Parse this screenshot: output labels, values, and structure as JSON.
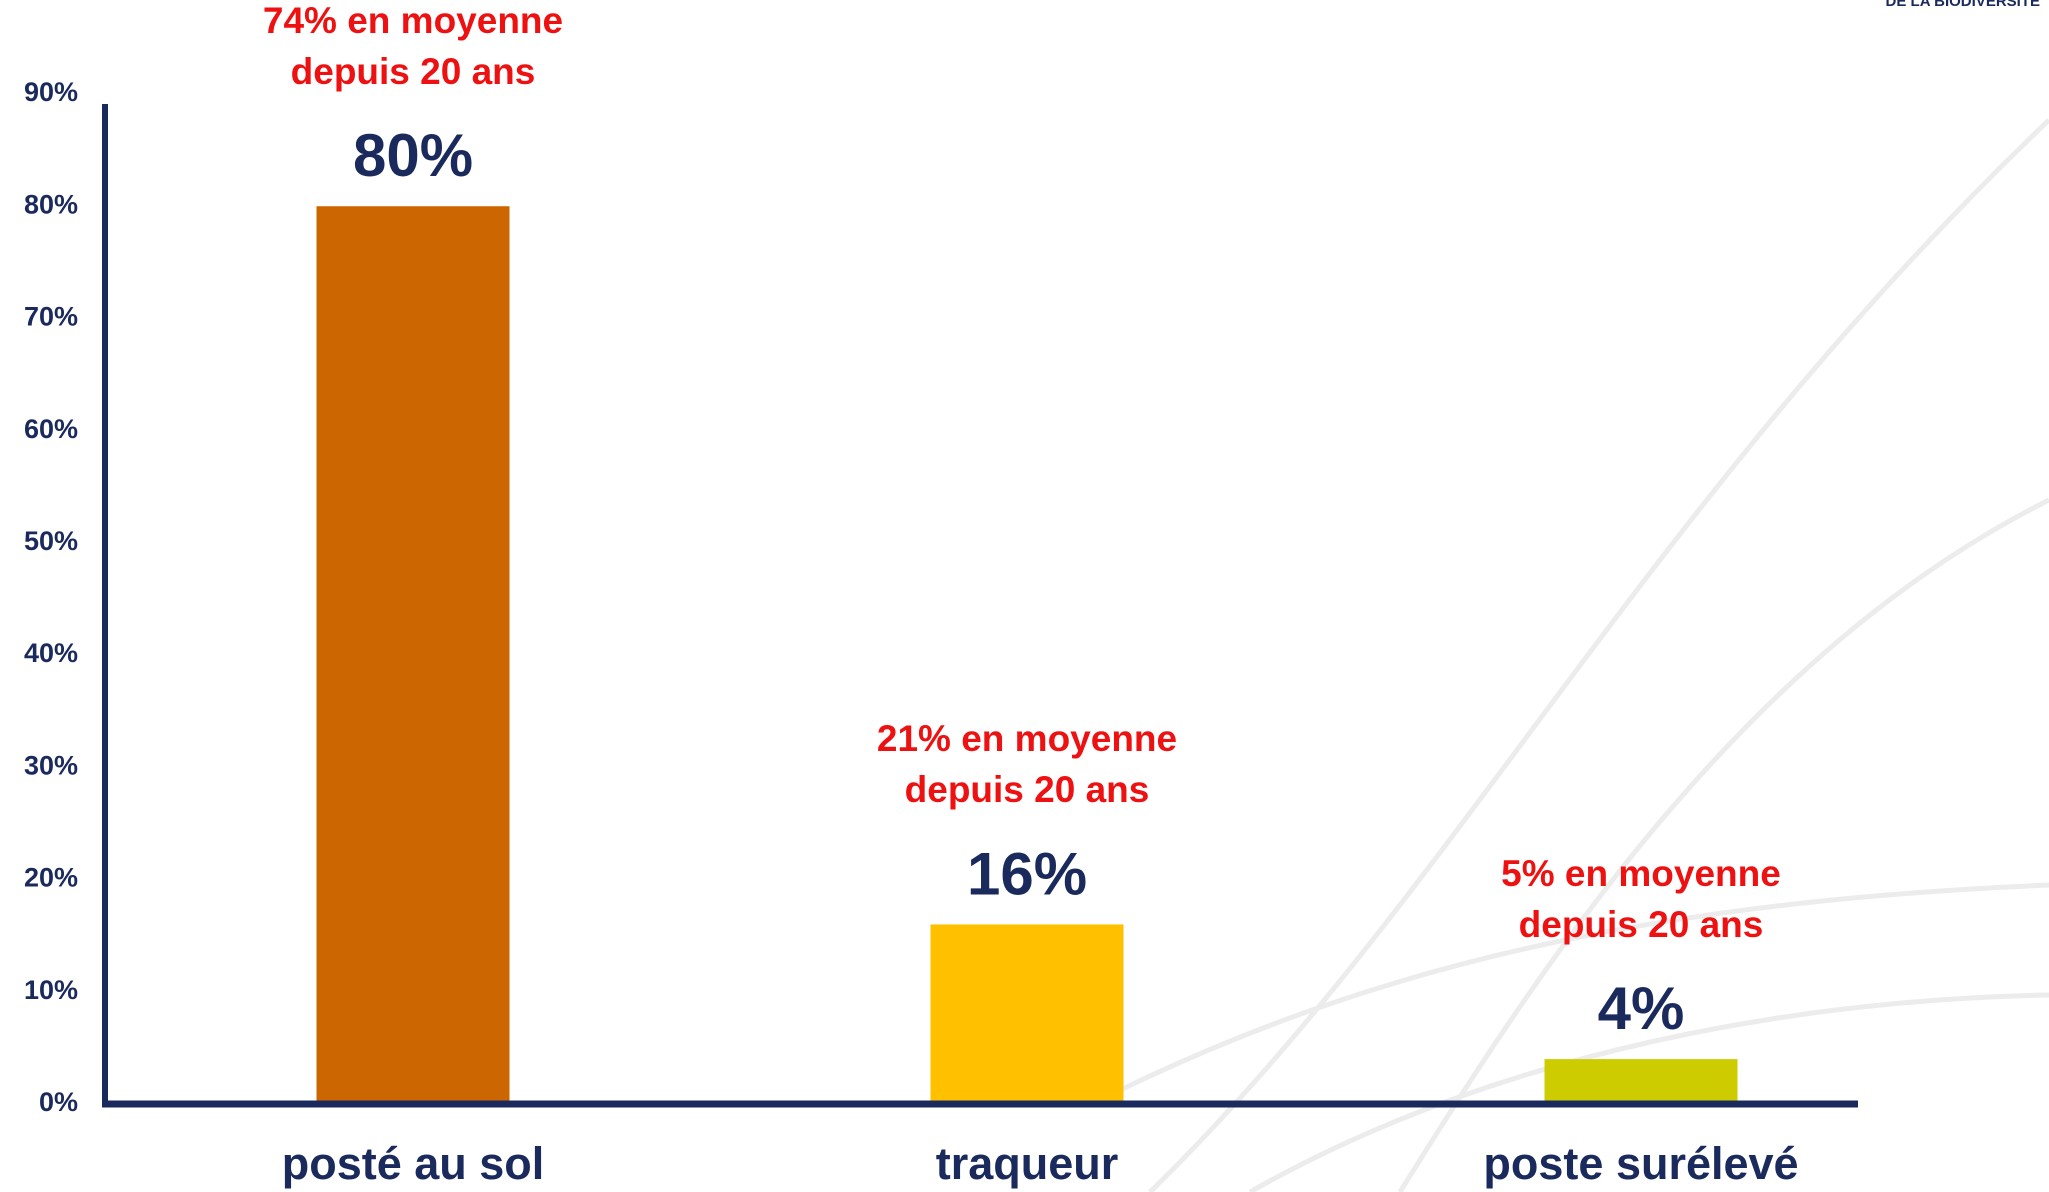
{
  "chart_data": {
    "type": "bar",
    "logo_text": "DE LA BIODIVERSITÉ",
    "categories": [
      "posté au sol",
      "traqueur",
      "poste surélevé"
    ],
    "values": [
      80,
      16,
      4
    ],
    "value_labels": [
      "80%",
      "16%",
      "4%"
    ],
    "colors": [
      "#cc6600",
      "#ffc000",
      "#cccc00"
    ],
    "annotations": [
      [
        "74% en moyenne",
        "depuis 20 ans"
      ],
      [
        "21% en moyenne",
        "depuis 20 ans"
      ],
      [
        "5% en moyenne",
        "depuis 20 ans"
      ]
    ],
    "ylim": [
      0,
      90
    ],
    "yticks": [
      {
        "value": 0,
        "label": "0%"
      },
      {
        "value": 10,
        "label": "10%"
      },
      {
        "value": 20,
        "label": "20%"
      },
      {
        "value": 30,
        "label": "30%"
      },
      {
        "value": 40,
        "label": "40%"
      },
      {
        "value": 50,
        "label": "50%"
      },
      {
        "value": 60,
        "label": "60%"
      },
      {
        "value": 70,
        "label": "70%"
      },
      {
        "value": 80,
        "label": "80%"
      },
      {
        "value": 90,
        "label": "90%"
      }
    ],
    "grid": false
  }
}
